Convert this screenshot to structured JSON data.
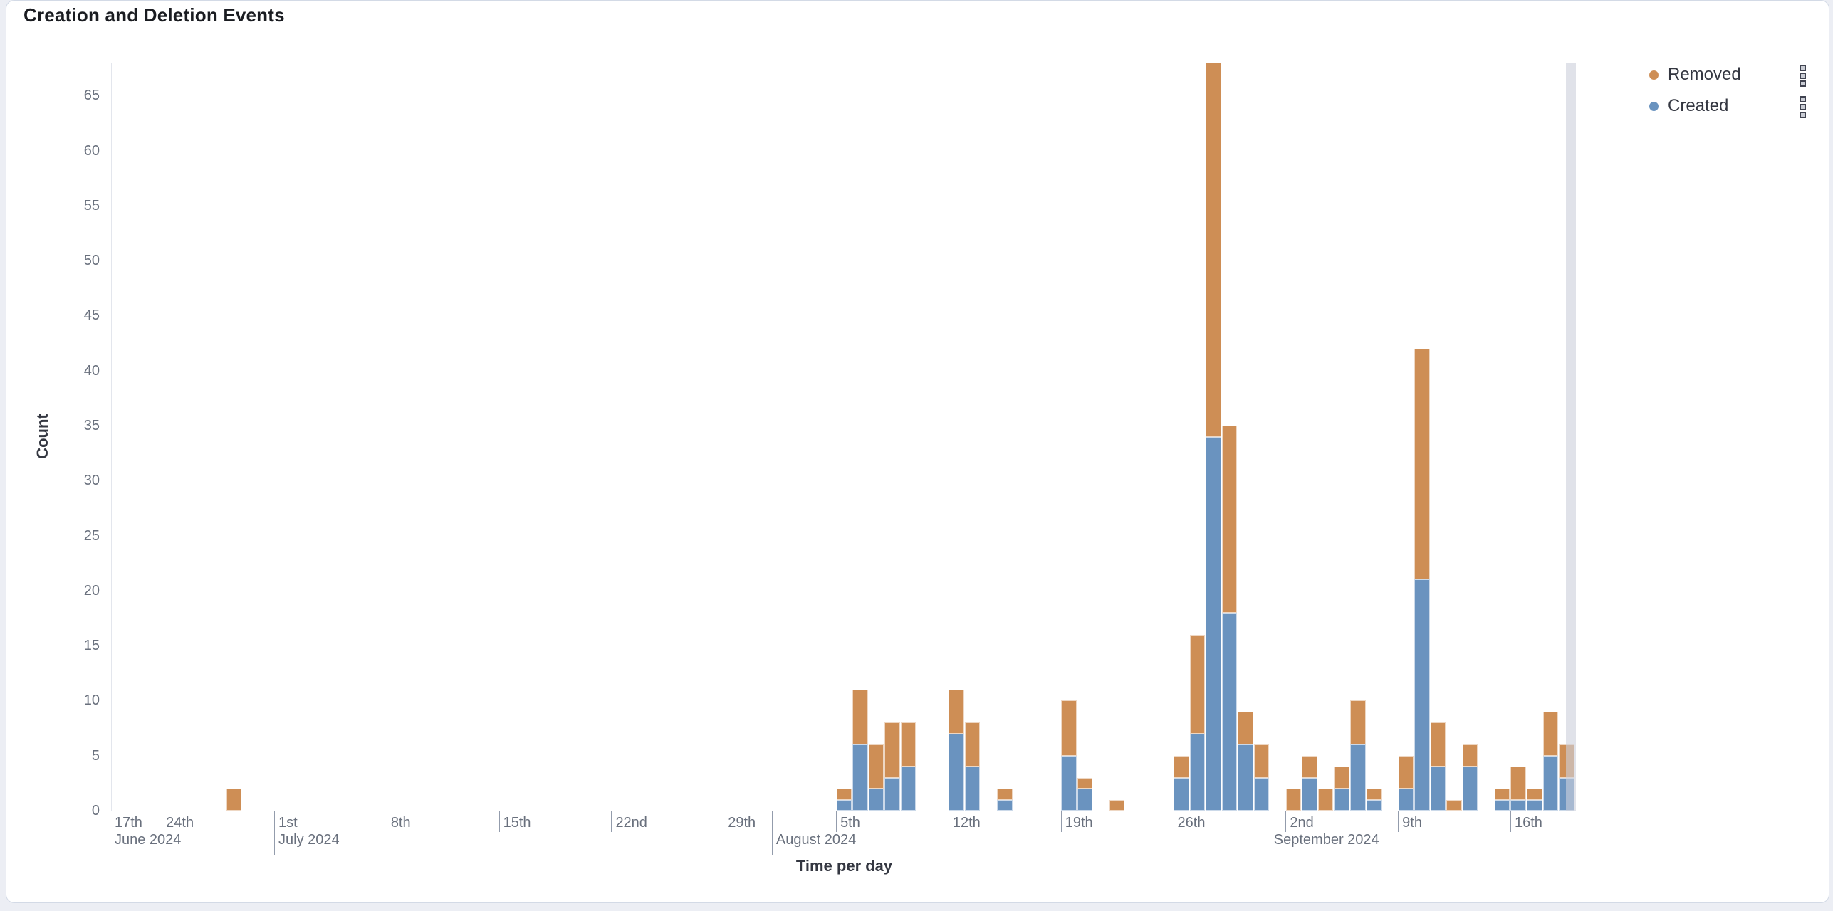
{
  "panel": {
    "title": "Creation and Deletion Events"
  },
  "legend": {
    "position": "right",
    "items": [
      {
        "label": "Removed",
        "color": "#CE8E55"
      },
      {
        "label": "Created",
        "color": "#6A93BF"
      }
    ],
    "action_icon": "boxes-vertical-icon"
  },
  "chart_data": {
    "type": "bar",
    "stacked": true,
    "title": "Creation and Deletion Events",
    "xlabel": "Time per day",
    "ylabel": "Count",
    "x_unit": "day",
    "ylim": [
      0,
      68
    ],
    "y_ticks": [
      0,
      5,
      10,
      15,
      20,
      25,
      30,
      35,
      40,
      45,
      50,
      55,
      60,
      65
    ],
    "grid": false,
    "legend_position": "right",
    "series": [
      {
        "name": "Created",
        "color": "#6A93BF",
        "stack_order": 0
      },
      {
        "name": "Removed",
        "color": "#CE8E55",
        "stack_order": 1
      }
    ],
    "points": [
      {
        "date": "2024-06-28",
        "created": 0,
        "removed": 2
      },
      {
        "date": "2024-08-05",
        "created": 1,
        "removed": 1
      },
      {
        "date": "2024-08-06",
        "created": 6,
        "removed": 5
      },
      {
        "date": "2024-08-07",
        "created": 2,
        "removed": 4
      },
      {
        "date": "2024-08-08",
        "created": 3,
        "removed": 5
      },
      {
        "date": "2024-08-09",
        "created": 4,
        "removed": 4
      },
      {
        "date": "2024-08-12",
        "created": 7,
        "removed": 4
      },
      {
        "date": "2024-08-13",
        "created": 4,
        "removed": 4
      },
      {
        "date": "2024-08-15",
        "created": 1,
        "removed": 1
      },
      {
        "date": "2024-08-19",
        "created": 5,
        "removed": 5
      },
      {
        "date": "2024-08-20",
        "created": 2,
        "removed": 1
      },
      {
        "date": "2024-08-22",
        "created": 0,
        "removed": 1
      },
      {
        "date": "2024-08-26",
        "created": 3,
        "removed": 2
      },
      {
        "date": "2024-08-27",
        "created": 7,
        "removed": 9
      },
      {
        "date": "2024-08-28",
        "created": 34,
        "removed": 34
      },
      {
        "date": "2024-08-29",
        "created": 18,
        "removed": 17
      },
      {
        "date": "2024-08-30",
        "created": 6,
        "removed": 3
      },
      {
        "date": "2024-08-31",
        "created": 3,
        "removed": 3
      },
      {
        "date": "2024-09-02",
        "created": 0,
        "removed": 2
      },
      {
        "date": "2024-09-03",
        "created": 3,
        "removed": 2
      },
      {
        "date": "2024-09-04",
        "created": 0,
        "removed": 2
      },
      {
        "date": "2024-09-05",
        "created": 2,
        "removed": 2
      },
      {
        "date": "2024-09-06",
        "created": 6,
        "removed": 4
      },
      {
        "date": "2024-09-07",
        "created": 1,
        "removed": 1
      },
      {
        "date": "2024-09-09",
        "created": 2,
        "removed": 3
      },
      {
        "date": "2024-09-10",
        "created": 21,
        "removed": 21
      },
      {
        "date": "2024-09-11",
        "created": 4,
        "removed": 4
      },
      {
        "date": "2024-09-12",
        "created": 0,
        "removed": 1
      },
      {
        "date": "2024-09-13",
        "created": 4,
        "removed": 2
      },
      {
        "date": "2024-09-15",
        "created": 1,
        "removed": 1
      },
      {
        "date": "2024-09-16",
        "created": 1,
        "removed": 3
      },
      {
        "date": "2024-09-17",
        "created": 1,
        "removed": 1
      },
      {
        "date": "2024-09-18",
        "created": 5,
        "removed": 4
      },
      {
        "date": "2024-09-19",
        "created": 3,
        "removed": 3
      }
    ],
    "x_axis": {
      "pinned_day_label": "17th",
      "pinned_month_label": "June 2024",
      "week_ticks": [
        {
          "date": "2024-06-24",
          "label": "24th"
        },
        {
          "date": "2024-07-01",
          "label": "1st"
        },
        {
          "date": "2024-07-08",
          "label": "8th"
        },
        {
          "date": "2024-07-15",
          "label": "15th"
        },
        {
          "date": "2024-07-22",
          "label": "22nd"
        },
        {
          "date": "2024-07-29",
          "label": "29th"
        },
        {
          "date": "2024-08-05",
          "label": "5th"
        },
        {
          "date": "2024-08-12",
          "label": "12th"
        },
        {
          "date": "2024-08-19",
          "label": "19th"
        },
        {
          "date": "2024-08-26",
          "label": "26th"
        },
        {
          "date": "2024-09-02",
          "label": "2nd"
        },
        {
          "date": "2024-09-09",
          "label": "9th"
        },
        {
          "date": "2024-09-16",
          "label": "16th"
        }
      ],
      "month_ticks": [
        {
          "date": "2024-07-01",
          "label": "July 2024"
        },
        {
          "date": "2024-08-01",
          "label": "August 2024"
        },
        {
          "date": "2024-09-01",
          "label": "September 2024"
        }
      ],
      "right_edge_band_color": "#E0E2E7"
    }
  }
}
